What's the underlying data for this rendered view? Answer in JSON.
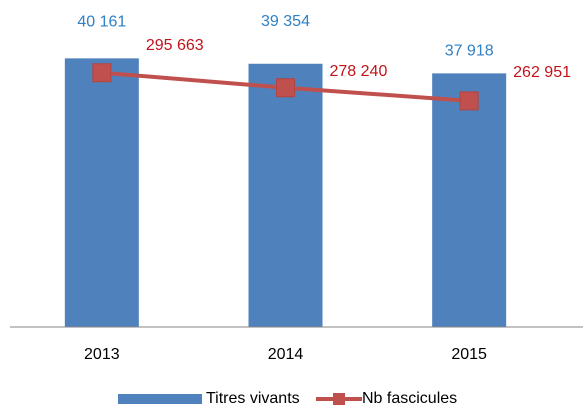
{
  "chart_data": {
    "type": "bar_line",
    "categories": [
      "2013",
      "2014",
      "2015"
    ],
    "series": [
      {
        "name": "Titres vivants",
        "type": "bar",
        "color": "#4f81bd",
        "values": [
          40161,
          39354,
          37918
        ],
        "value_labels": [
          "40 161",
          "39 354",
          "37 918"
        ]
      },
      {
        "name": "Nb fascicules",
        "type": "line",
        "axis": "y2",
        "color": "#c0504d",
        "values": [
          295663,
          278240,
          262951
        ],
        "value_labels": [
          "295 663",
          "278 240",
          "262 951"
        ]
      }
    ],
    "ylim": [
      0,
      45000
    ],
    "y2lim": [
      0,
      350000
    ],
    "legend": "bottom"
  }
}
